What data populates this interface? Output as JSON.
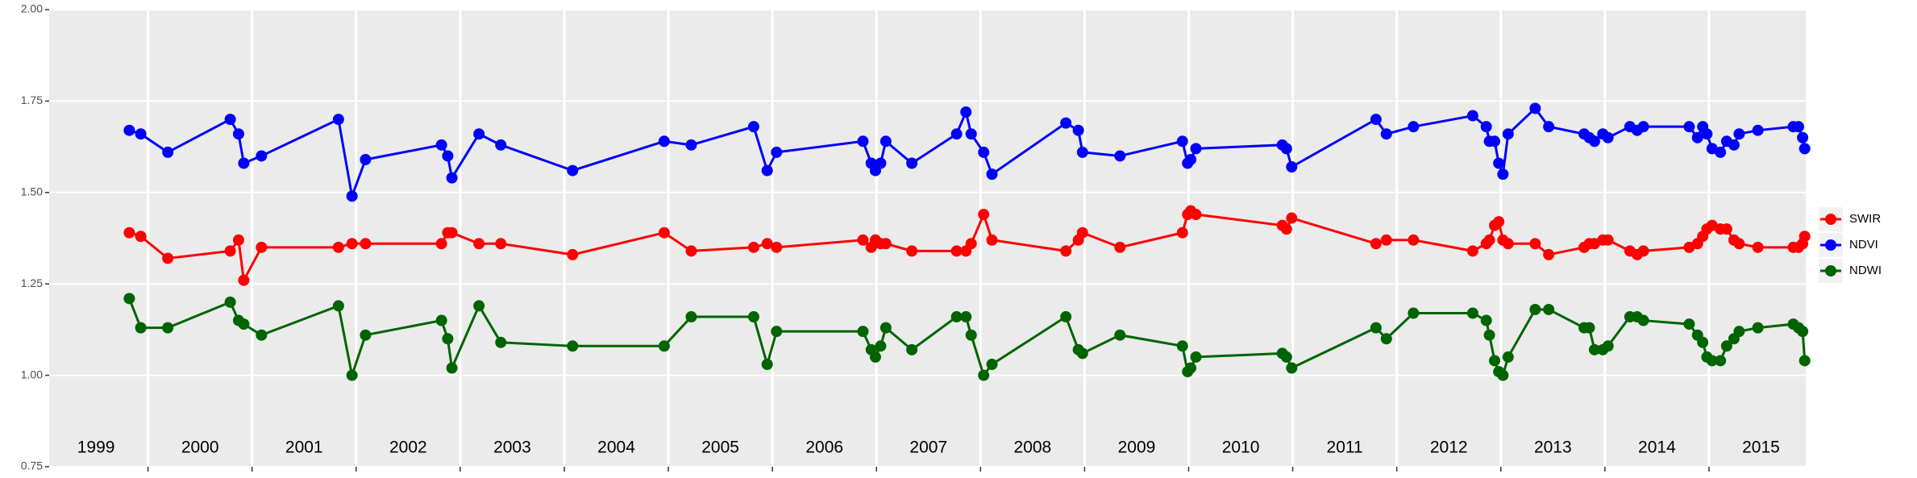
{
  "chart_data": {
    "type": "line",
    "x": [
      1999.82,
      1999.93,
      2000.19,
      2000.79,
      2000.87,
      2000.92,
      2001.09,
      2001.83,
      2001.96,
      2002.09,
      2002.82,
      2002.88,
      2002.92,
      2003.18,
      2003.39,
      2004.08,
      2004.96,
      2005.22,
      2005.82,
      2005.95,
      2006.04,
      2006.87,
      2006.95,
      2006.99,
      2007.04,
      2007.09,
      2007.34,
      2007.77,
      2007.86,
      2007.91,
      2008.03,
      2008.11,
      2008.82,
      2008.94,
      2008.98,
      2009.34,
      2009.94,
      2009.99,
      2010.02,
      2010.07,
      2010.9,
      2010.94,
      2010.99,
      2011.8,
      2011.9,
      2012.16,
      2012.73,
      2012.86,
      2012.89,
      2012.94,
      2012.98,
      2013.02,
      2013.07,
      2013.33,
      2013.46,
      2013.8,
      2013.85,
      2013.9,
      2013.98,
      2014.03,
      2014.24,
      2014.31,
      2014.37,
      2014.81,
      2014.89,
      2014.94,
      2014.98,
      2015.03,
      2015.11,
      2015.17,
      2015.24,
      2015.29,
      2015.47,
      2015.81,
      2015.86,
      2015.9,
      2015.92
    ],
    "series": [
      {
        "name": "SWIR",
        "color": "#ff0000",
        "values": [
          1.39,
          1.38,
          1.32,
          1.34,
          1.37,
          1.26,
          1.35,
          1.35,
          1.36,
          1.36,
          1.36,
          1.39,
          1.39,
          1.36,
          1.36,
          1.33,
          1.39,
          1.34,
          1.35,
          1.36,
          1.35,
          1.37,
          1.35,
          1.37,
          1.36,
          1.36,
          1.34,
          1.34,
          1.34,
          1.36,
          1.44,
          1.37,
          1.34,
          1.37,
          1.39,
          1.35,
          1.39,
          1.44,
          1.45,
          1.44,
          1.41,
          1.4,
          1.43,
          1.36,
          1.37,
          1.37,
          1.34,
          1.36,
          1.37,
          1.41,
          1.42,
          1.37,
          1.36,
          1.36,
          1.33,
          1.35,
          1.36,
          1.36,
          1.37,
          1.37,
          1.34,
          1.33,
          1.34,
          1.35,
          1.36,
          1.38,
          1.4,
          1.41,
          1.4,
          1.4,
          1.37,
          1.36,
          1.35,
          1.35,
          1.35,
          1.36,
          1.38
        ]
      },
      {
        "name": "NDVI",
        "color": "#0000ff",
        "values": [
          1.67,
          1.66,
          1.61,
          1.7,
          1.66,
          1.58,
          1.6,
          1.7,
          1.49,
          1.59,
          1.63,
          1.6,
          1.54,
          1.66,
          1.63,
          1.56,
          1.64,
          1.63,
          1.68,
          1.56,
          1.61,
          1.64,
          1.58,
          1.56,
          1.58,
          1.64,
          1.58,
          1.66,
          1.72,
          1.66,
          1.61,
          1.55,
          1.69,
          1.67,
          1.61,
          1.6,
          1.64,
          1.58,
          1.59,
          1.62,
          1.63,
          1.62,
          1.57,
          1.7,
          1.66,
          1.68,
          1.71,
          1.68,
          1.64,
          1.64,
          1.58,
          1.55,
          1.66,
          1.73,
          1.68,
          1.66,
          1.65,
          1.64,
          1.66,
          1.65,
          1.68,
          1.67,
          1.68,
          1.68,
          1.65,
          1.68,
          1.66,
          1.62,
          1.61,
          1.64,
          1.63,
          1.66,
          1.67,
          1.68,
          1.68,
          1.65,
          1.62
        ]
      },
      {
        "name": "NDWI",
        "color": "#006400",
        "values": [
          1.21,
          1.13,
          1.13,
          1.2,
          1.15,
          1.14,
          1.11,
          1.19,
          1.0,
          1.11,
          1.15,
          1.1,
          1.02,
          1.19,
          1.09,
          1.08,
          1.08,
          1.16,
          1.16,
          1.03,
          1.12,
          1.12,
          1.07,
          1.05,
          1.08,
          1.13,
          1.07,
          1.16,
          1.16,
          1.11,
          1.0,
          1.03,
          1.16,
          1.07,
          1.06,
          1.11,
          1.08,
          1.01,
          1.02,
          1.05,
          1.06,
          1.05,
          1.02,
          1.13,
          1.1,
          1.17,
          1.17,
          1.15,
          1.11,
          1.04,
          1.01,
          1.0,
          1.05,
          1.18,
          1.18,
          1.13,
          1.13,
          1.07,
          1.07,
          1.08,
          1.16,
          1.16,
          1.15,
          1.14,
          1.11,
          1.09,
          1.05,
          1.04,
          1.04,
          1.08,
          1.1,
          1.12,
          1.13,
          1.14,
          1.13,
          1.12,
          1.04
        ]
      }
    ],
    "xlim": [
      1999.05,
      2015.93
    ],
    "xticks": [
      {
        "value": 1999.5,
        "label": "1999"
      },
      {
        "value": 2000.5,
        "label": "2000"
      },
      {
        "value": 2001.5,
        "label": "2001"
      },
      {
        "value": 2002.5,
        "label": "2002"
      },
      {
        "value": 2003.5,
        "label": "2003"
      },
      {
        "value": 2004.5,
        "label": "2004"
      },
      {
        "value": 2005.5,
        "label": "2005"
      },
      {
        "value": 2006.5,
        "label": "2006"
      },
      {
        "value": 2007.5,
        "label": "2007"
      },
      {
        "value": 2008.5,
        "label": "2008"
      },
      {
        "value": 2009.5,
        "label": "2009"
      },
      {
        "value": 2010.5,
        "label": "2010"
      },
      {
        "value": 2011.5,
        "label": "2011"
      },
      {
        "value": 2012.5,
        "label": "2012"
      },
      {
        "value": 2013.5,
        "label": "2013"
      },
      {
        "value": 2014.5,
        "label": "2014"
      },
      {
        "value": 2015.5,
        "label": "2015"
      }
    ],
    "xbreaks": [
      2000,
      2001,
      2002,
      2003,
      2004,
      2005,
      2006,
      2007,
      2008,
      2009,
      2010,
      2011,
      2012,
      2013,
      2014,
      2015
    ],
    "ylim": [
      0.75,
      2.0
    ],
    "yticks": [
      {
        "value": 0.75,
        "label": "0.75"
      },
      {
        "value": 1.0,
        "label": "1.00"
      },
      {
        "value": 1.25,
        "label": "1.25"
      },
      {
        "value": 1.5,
        "label": "1.50"
      },
      {
        "value": 1.75,
        "label": "1.75"
      },
      {
        "value": 2.0,
        "label": "2.00"
      }
    ],
    "grid": true
  }
}
